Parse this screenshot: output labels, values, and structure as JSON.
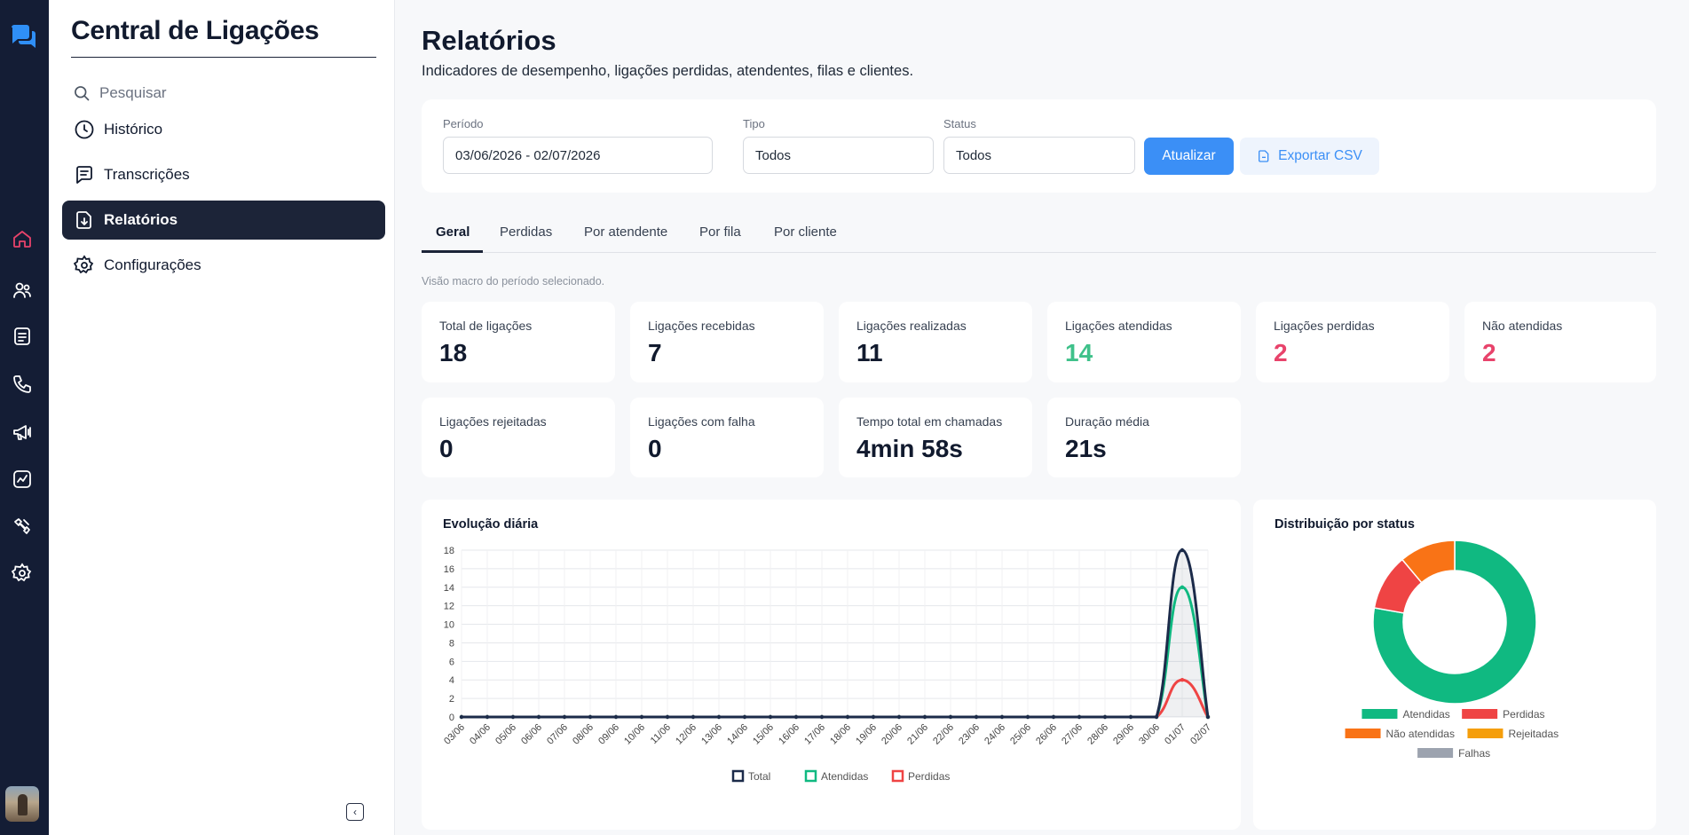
{
  "app": {
    "name": "Central de Ligações",
    "search_placeholder": "Pesquisar"
  },
  "rail": [
    {
      "icon": "chat-bubbles-icon"
    },
    {
      "icon": "home-icon",
      "color": "#e8436b"
    },
    {
      "icon": "contacts-icon"
    },
    {
      "icon": "notes-icon"
    },
    {
      "icon": "phone-icon"
    },
    {
      "icon": "megaphone-icon"
    },
    {
      "icon": "chart-icon"
    },
    {
      "icon": "tools-icon"
    },
    {
      "icon": "settings-icon"
    }
  ],
  "sidebar": {
    "items": [
      {
        "label": "Histórico",
        "icon": "clock-icon"
      },
      {
        "label": "Transcrições",
        "icon": "message-square-icon"
      },
      {
        "label": "Relatórios",
        "icon": "report-download-icon",
        "active": true
      },
      {
        "label": "Configurações",
        "icon": "gear-icon"
      }
    ]
  },
  "page": {
    "title": "Relatórios",
    "subtitle": "Indicadores de desempenho, ligações perdidas, atendentes, filas e clientes.",
    "hint": "Visão macro do período selecionado."
  },
  "filters": {
    "period_label": "Período",
    "period_value": "03/06/2026 - 02/07/2026",
    "type_label": "Tipo",
    "type_value": "Todos",
    "status_label": "Status",
    "status_value": "Todos",
    "update_button": "Atualizar",
    "export_button": "Exportar CSV"
  },
  "tabs": [
    "Geral",
    "Perdidas",
    "Por atendente",
    "Por fila",
    "Por cliente"
  ],
  "kpis": [
    {
      "label": "Total de ligações",
      "value": "18"
    },
    {
      "label": "Ligações recebidas",
      "value": "7"
    },
    {
      "label": "Ligações realizadas",
      "value": "11"
    },
    {
      "label": "Ligações atendidas",
      "value": "14",
      "color": "#3fc18a"
    },
    {
      "label": "Ligações perdidas",
      "value": "2",
      "color": "#e8436b"
    },
    {
      "label": "Não atendidas",
      "value": "2",
      "color": "#e8436b"
    },
    {
      "label": "Ligações rejeitadas",
      "value": "0"
    },
    {
      "label": "Ligações com falha",
      "value": "0"
    },
    {
      "label": "Tempo total em chamadas",
      "value": "4min 58s"
    },
    {
      "label": "Duração média",
      "value": "21s"
    }
  ],
  "charts_text": {
    "daily_title": "Evolução diária",
    "status_title": "Distribuição por status"
  },
  "chart_data": [
    {
      "type": "line",
      "title": "Evolução diária",
      "x": [
        "03/06",
        "04/06",
        "05/06",
        "06/06",
        "07/06",
        "08/06",
        "09/06",
        "10/06",
        "11/06",
        "12/06",
        "13/06",
        "14/06",
        "15/06",
        "16/06",
        "17/06",
        "18/06",
        "19/06",
        "20/06",
        "21/06",
        "22/06",
        "23/06",
        "24/06",
        "25/06",
        "26/06",
        "27/06",
        "28/06",
        "29/06",
        "30/06",
        "01/07",
        "02/07"
      ],
      "series": [
        {
          "name": "Total",
          "color": "#1c2b4a",
          "values": [
            0,
            0,
            0,
            0,
            0,
            0,
            0,
            0,
            0,
            0,
            0,
            0,
            0,
            0,
            0,
            0,
            0,
            0,
            0,
            0,
            0,
            0,
            0,
            0,
            0,
            0,
            0,
            0,
            18,
            0
          ]
        },
        {
          "name": "Atendidas",
          "color": "#10b981",
          "values": [
            0,
            0,
            0,
            0,
            0,
            0,
            0,
            0,
            0,
            0,
            0,
            0,
            0,
            0,
            0,
            0,
            0,
            0,
            0,
            0,
            0,
            0,
            0,
            0,
            0,
            0,
            0,
            0,
            14,
            0
          ]
        },
        {
          "name": "Perdidas",
          "color": "#ef4444",
          "values": [
            0,
            0,
            0,
            0,
            0,
            0,
            0,
            0,
            0,
            0,
            0,
            0,
            0,
            0,
            0,
            0,
            0,
            0,
            0,
            0,
            0,
            0,
            0,
            0,
            0,
            0,
            0,
            0,
            4,
            0
          ]
        }
      ],
      "ylim": [
        0,
        18
      ],
      "yticks": [
        0,
        2,
        4,
        6,
        8,
        10,
        12,
        14,
        16,
        18
      ],
      "grid": true,
      "legend": "bottom"
    },
    {
      "type": "pie",
      "title": "Distribuição por status",
      "donut": true,
      "slices": [
        {
          "label": "Atendidas",
          "value": 14,
          "color": "#10b981"
        },
        {
          "label": "Perdidas",
          "value": 2,
          "color": "#ef4444"
        },
        {
          "label": "Não atendidas",
          "value": 2,
          "color": "#f97316"
        },
        {
          "label": "Rejeitadas",
          "value": 0,
          "color": "#f59e0b"
        },
        {
          "label": "Falhas",
          "value": 0,
          "color": "#9ca3af"
        }
      ],
      "legend": "bottom"
    }
  ]
}
